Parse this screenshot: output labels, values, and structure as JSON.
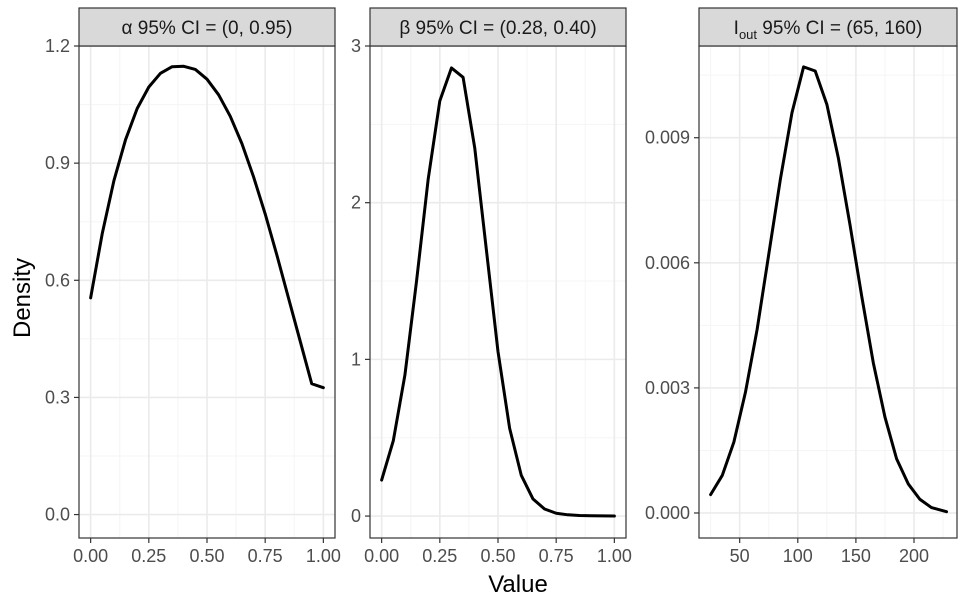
{
  "figure": {
    "xlabel": "Value",
    "ylabel": "Density"
  },
  "colors": {
    "line": "#000000",
    "strip_fill": "#d9d9d9",
    "grid_major": "#ebebeb",
    "grid_minor": "#f5f5f5",
    "panel_border": "#333333",
    "tick_text": "#4d4d4d"
  },
  "chart_data": [
    {
      "type": "line",
      "title": "α 95% CI = (0, 0.95)",
      "xlim": [
        -0.05,
        1.05
      ],
      "ylim": [
        -0.06,
        1.2
      ],
      "xticks": [
        0.0,
        0.25,
        0.5,
        0.75,
        1.0
      ],
      "xtick_labels": [
        "0.00",
        "0.25",
        "0.50",
        "0.75",
        "1.00"
      ],
      "yticks": [
        0.0,
        0.3,
        0.6,
        0.9,
        1.2
      ],
      "ytick_labels": [
        "0.0",
        "0.3",
        "0.6",
        "0.9",
        "1.2"
      ],
      "series": [
        {
          "x": [
            0.0,
            0.05,
            0.1,
            0.15,
            0.2,
            0.25,
            0.3,
            0.35,
            0.4,
            0.45,
            0.5,
            0.55,
            0.6,
            0.65,
            0.7,
            0.75,
            0.8,
            0.85,
            0.9,
            0.95,
            1.0
          ],
          "y": [
            0.555,
            0.72,
            0.855,
            0.96,
            1.04,
            1.095,
            1.13,
            1.147,
            1.148,
            1.14,
            1.115,
            1.075,
            1.02,
            0.95,
            0.865,
            0.77,
            0.665,
            0.555,
            0.445,
            0.335,
            0.325
          ]
        }
      ]
    },
    {
      "type": "line",
      "title": "β 95% CI = (0.28, 0.40)",
      "xlim": [
        -0.05,
        1.05
      ],
      "ylim": [
        -0.14,
        3.0
      ],
      "xticks": [
        0.0,
        0.25,
        0.5,
        0.75,
        1.0
      ],
      "xtick_labels": [
        "0.00",
        "0.25",
        "0.50",
        "0.75",
        "1.00"
      ],
      "yticks": [
        0,
        1,
        2,
        3
      ],
      "ytick_labels": [
        "0",
        "1",
        "2",
        "3"
      ],
      "series": [
        {
          "x": [
            0.0,
            0.05,
            0.1,
            0.15,
            0.2,
            0.25,
            0.3,
            0.35,
            0.4,
            0.45,
            0.5,
            0.55,
            0.6,
            0.65,
            0.7,
            0.75,
            0.8,
            0.85,
            0.9,
            0.95,
            1.0
          ],
          "y": [
            0.23,
            0.48,
            0.9,
            1.5,
            2.15,
            2.65,
            2.86,
            2.8,
            2.35,
            1.7,
            1.05,
            0.56,
            0.26,
            0.11,
            0.045,
            0.018,
            0.008,
            0.004,
            0.002,
            0.001,
            0.0
          ]
        }
      ]
    },
    {
      "type": "line",
      "title": "95% CI = (65, 160)",
      "title_symbol": "I",
      "title_subscript": "out",
      "xlim": [
        15,
        237
      ],
      "ylim": [
        -0.0006,
        0.0112
      ],
      "xticks": [
        50,
        100,
        150,
        200
      ],
      "xtick_labels": [
        "50",
        "100",
        "150",
        "200"
      ],
      "yticks": [
        0.0,
        0.003,
        0.006,
        0.009
      ],
      "ytick_labels": [
        "0.000",
        "0.003",
        "0.006",
        "0.009"
      ],
      "series": [
        {
          "x": [
            25,
            35,
            45,
            55,
            65,
            75,
            85,
            95,
            105,
            115,
            125,
            135,
            145,
            155,
            165,
            175,
            185,
            195,
            205,
            215,
            228
          ],
          "y": [
            0.00044,
            0.0009,
            0.0017,
            0.0029,
            0.0044,
            0.0062,
            0.008,
            0.0096,
            0.0107,
            0.0106,
            0.0098,
            0.0085,
            0.0069,
            0.0052,
            0.0036,
            0.0023,
            0.0013,
            0.0007,
            0.00033,
            0.00013,
            3e-05
          ]
        }
      ]
    }
  ]
}
